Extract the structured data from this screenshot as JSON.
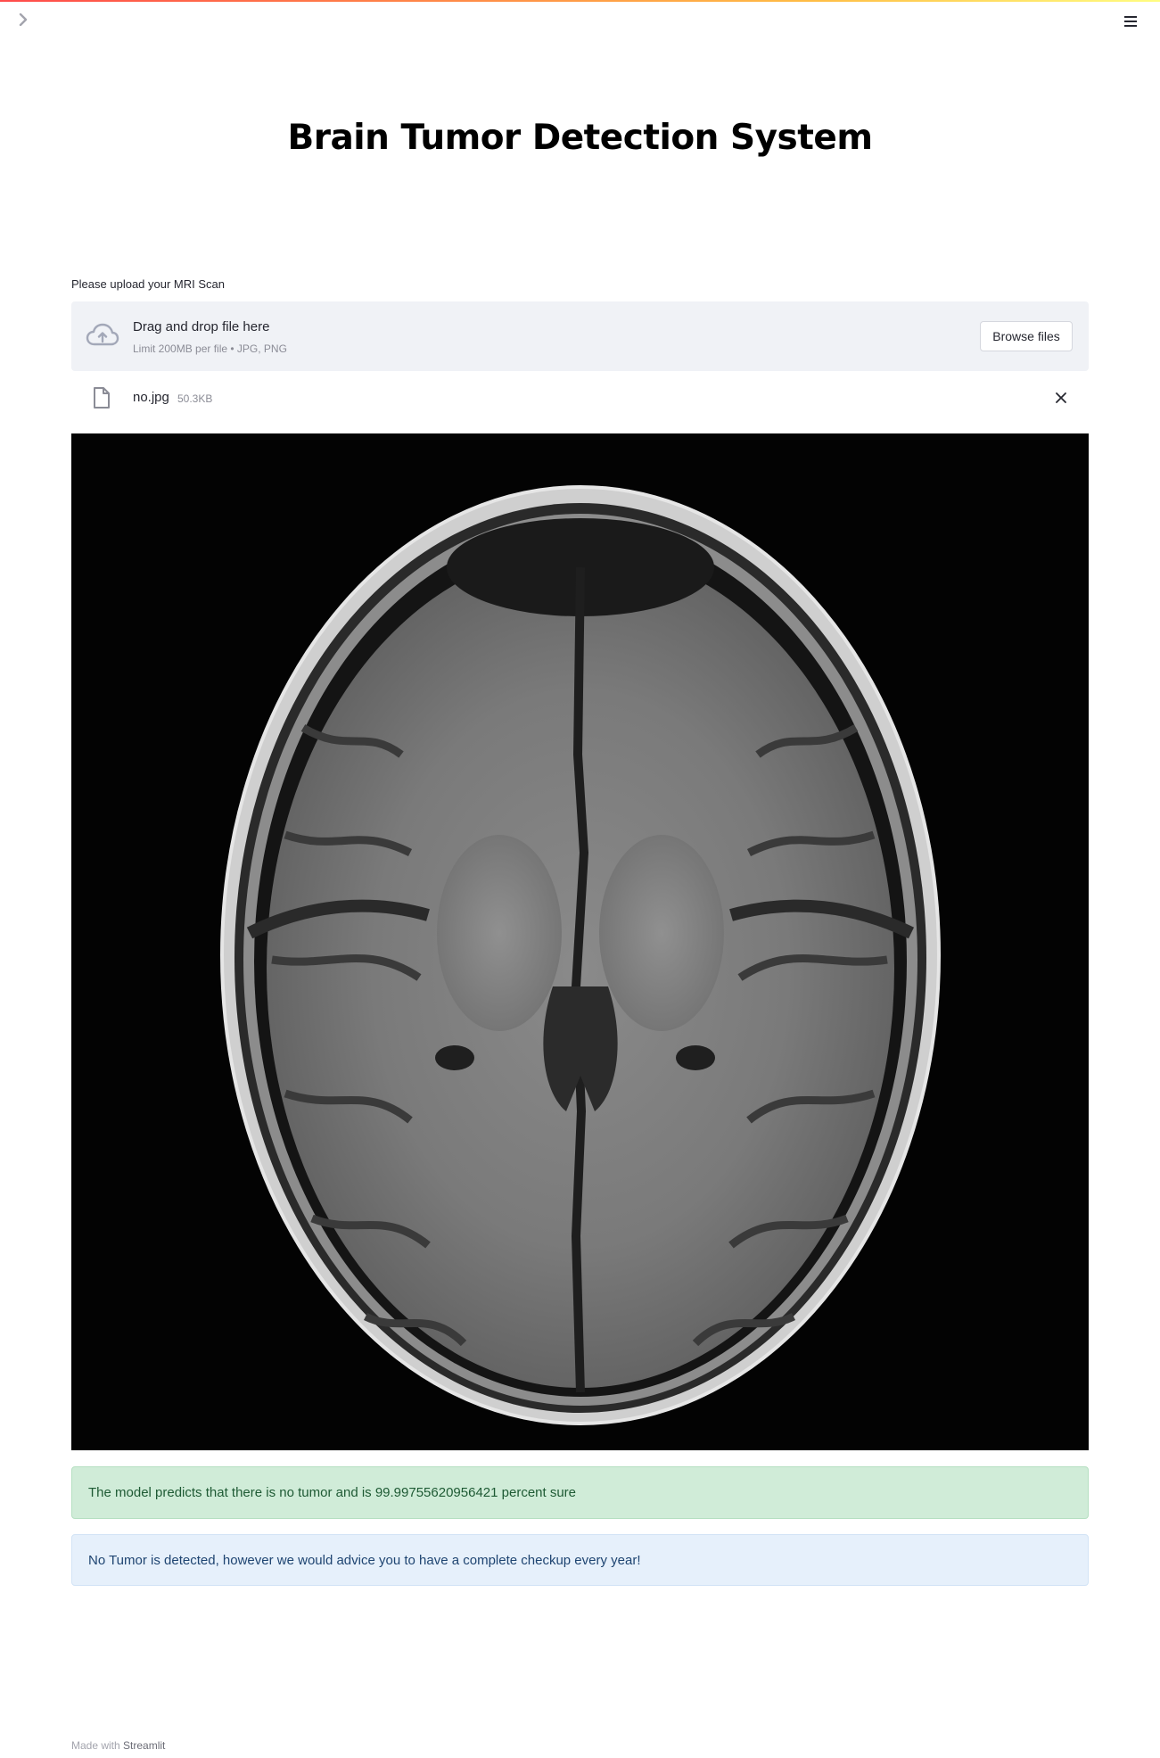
{
  "app": {
    "title": "Brain Tumor Detection System",
    "accent_gradient": [
      "#ff4b4b",
      "#ffbd45",
      "#fffd80"
    ]
  },
  "header": {
    "sidebar_toggle_icon": "chevron-right-icon",
    "menu_icon": "hamburger-menu-icon"
  },
  "uploader": {
    "label": "Please upload your MRI Scan",
    "drop_text": "Drag and drop file here",
    "limit_text": "Limit 200MB per file • JPG, PNG",
    "browse_label": "Browse files",
    "icon": "cloud-upload-icon"
  },
  "file": {
    "name": "no.jpg",
    "size": "50.3KB",
    "icon": "document-icon",
    "remove_icon": "close-icon"
  },
  "image": {
    "description_icon": "mri-scan-image"
  },
  "results": {
    "success_text": "The model predicts that there is no tumor and is 99.99755620956421 percent sure",
    "success_color": "#d0ecd8",
    "info_text": "No Tumor is detected, however we would advice you to have a complete checkup every year!",
    "info_color": "#e6f0fb"
  },
  "footer": {
    "prefix": "Made with",
    "brand": "Streamlit"
  }
}
